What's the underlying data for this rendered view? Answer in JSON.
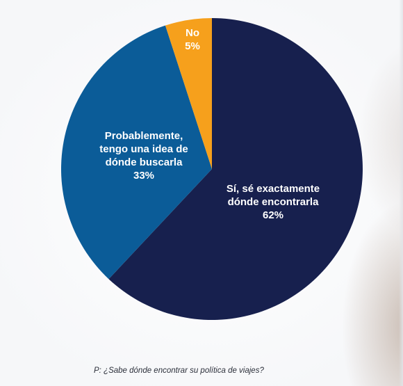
{
  "chart_data": {
    "type": "pie",
    "start_angle_deg": 0,
    "direction": "clockwise",
    "slices": [
      {
        "label_lines": [
          "Sí, sé exactamente",
          "dónde encontrarla",
          "62%"
        ],
        "value": 62,
        "color": "#17204e"
      },
      {
        "label_lines": [
          "Probablemente,",
          "tengo una idea de",
          "dónde buscarla",
          "33%"
        ],
        "value": 33,
        "color": "#0b5c98"
      },
      {
        "label_lines": [
          "No",
          "5%"
        ],
        "value": 5,
        "color": "#f6a01c"
      }
    ]
  },
  "footer": {
    "question": "P: ¿Sabe dónde encontrar su política de viajes?"
  }
}
